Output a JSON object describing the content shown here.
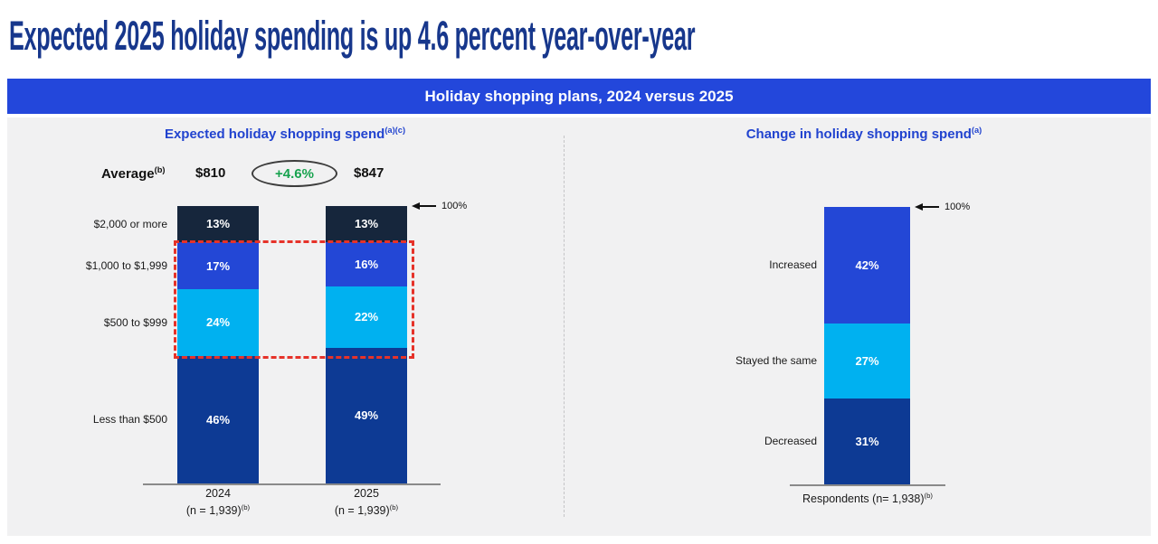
{
  "page": {
    "title": "Expected 2025 holiday spending is up 4.6 percent year-over-year"
  },
  "banner": {
    "title": "Holiday shopping plans, 2024 versus 2025"
  },
  "left_panel": {
    "title": "Expected holiday shopping spend",
    "title_sup": "(a)(c)",
    "average": {
      "label": "Average",
      "label_sup": "(b)",
      "value_2024": "$810",
      "change": "+4.6%",
      "value_2025": "$847"
    },
    "hundred_label": "100%"
  },
  "right_panel": {
    "title": "Change in holiday shopping spend",
    "title_sup": "(a)",
    "hundred_label": "100%"
  },
  "colors": {
    "headline_blue": "#17378c",
    "banner_blue": "#2347db",
    "section_title_blue": "#2143cf",
    "dark_navy": "#16263c",
    "royal_blue": "#2347d6",
    "cyan": "#00b1f0",
    "navy": "#0d3a94",
    "green": "#17a24e",
    "highlight_red": "#e63229",
    "panel_gray": "#f1f1f2"
  },
  "chart_data": [
    {
      "id": "left",
      "type": "bar",
      "stacked": true,
      "title": "Expected holiday shopping spend (a)(c)",
      "categories": [
        "2024",
        "2025"
      ],
      "segment_labels": [
        "$2,000 or more",
        "$1,000 to $1,999",
        "$500 to $999",
        "Less than $500"
      ],
      "series": [
        {
          "name": "$2,000 or more",
          "values": [
            13,
            13
          ],
          "color": "#16263c"
        },
        {
          "name": "$1,000 to $1,999",
          "values": [
            17,
            16
          ],
          "color": "#2347d6"
        },
        {
          "name": "$500 to $999",
          "values": [
            24,
            22
          ],
          "color": "#00b1f0"
        },
        {
          "name": "Less than $500",
          "values": [
            46,
            49
          ],
          "color": "#0d3a94"
        }
      ],
      "x_labels": [
        {
          "line1": "2024",
          "line2": "(n = 1,939)",
          "sup": "(b)"
        },
        {
          "line1": "2025",
          "line2": "(n = 1,939)",
          "sup": "(b)"
        }
      ],
      "ylim": [
        0,
        100
      ],
      "value_suffix": "%",
      "annotations": [
        "100% arrow at top of bars",
        "red dashed box around $1,000 to $1,999 and $500 to $999 segments of both bars"
      ]
    },
    {
      "id": "right",
      "type": "bar",
      "stacked": true,
      "title": "Change in holiday shopping spend (a)",
      "categories": [
        "Respondents"
      ],
      "segment_labels": [
        "Increased",
        "Stayed the same",
        "Decreased"
      ],
      "series": [
        {
          "name": "Increased",
          "values": [
            42
          ],
          "color": "#2347d6"
        },
        {
          "name": "Stayed the same",
          "values": [
            27
          ],
          "color": "#00b1f0"
        },
        {
          "name": "Decreased",
          "values": [
            31
          ],
          "color": "#0d3a94"
        }
      ],
      "x_labels": [
        {
          "line1": "Respondents (n= 1,938)",
          "sup": "(b)"
        }
      ],
      "ylim": [
        0,
        100
      ],
      "value_suffix": "%",
      "annotations": [
        "100% arrow at top of bar"
      ]
    }
  ]
}
